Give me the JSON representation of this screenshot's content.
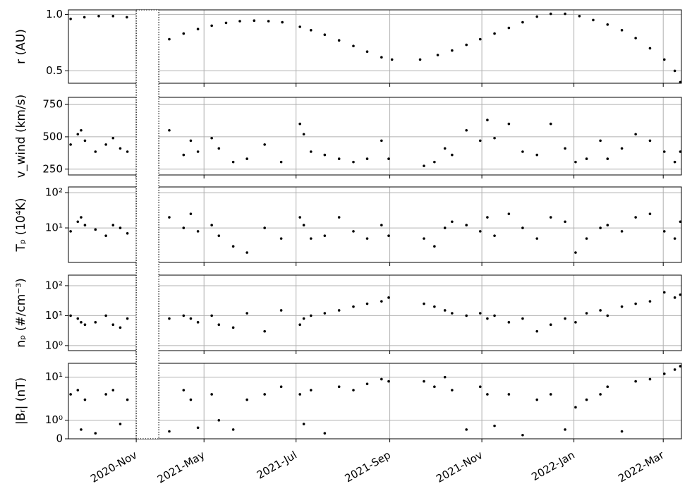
{
  "chart_data": [
    {
      "type": "scatter",
      "ylabel": "r (AU)",
      "yscale": "linear",
      "grid": true,
      "color": "#000000",
      "xlim": [
        2020.71,
        2022.195
      ],
      "xbreak": [
        2020.833,
        2021.247
      ],
      "xticks": [
        {
          "value": 2020.833,
          "label": "2020-Nov"
        },
        {
          "value": 2021.329,
          "label": "2021-May"
        },
        {
          "value": 2021.496,
          "label": "2021-Jul"
        },
        {
          "value": 2021.666,
          "label": "2021-Sep"
        },
        {
          "value": 2021.833,
          "label": "2021-Nov"
        },
        {
          "value": 2022.0,
          "label": "2022-Jan"
        },
        {
          "value": 2022.162,
          "label": "2022-Mar"
        }
      ],
      "ylim": [
        0.39,
        1.04
      ],
      "yticks": [
        0.5,
        {
          "value": 1,
          "label": "1.0"
        }
      ],
      "x": [
        2020.714,
        2020.739,
        2020.765,
        2020.791,
        2020.816,
        2021.266,
        2021.292,
        2021.318,
        2021.343,
        2021.369,
        2021.394,
        2021.42,
        2021.446,
        2021.471,
        2021.503,
        2021.523,
        2021.548,
        2021.574,
        2021.6,
        2021.625,
        2021.651,
        2021.67,
        2021.721,
        2021.753,
        2021.779,
        2021.805,
        2021.83,
        2021.856,
        2021.882,
        2021.907,
        2021.933,
        2021.958,
        2021.984,
        2022.01,
        2022.035,
        2022.061,
        2022.087,
        2022.112,
        2022.138,
        2022.164,
        2022.183,
        2022.193
      ],
      "values": [
        0.96,
        0.975,
        0.985,
        0.985,
        0.975,
        0.78,
        0.83,
        0.87,
        0.9,
        0.925,
        0.94,
        0.945,
        0.94,
        0.93,
        0.89,
        0.86,
        0.82,
        0.77,
        0.72,
        0.67,
        0.62,
        0.6,
        0.6,
        0.64,
        0.68,
        0.73,
        0.78,
        0.83,
        0.88,
        0.93,
        0.98,
        1.005,
        1.005,
        0.985,
        0.95,
        0.91,
        0.86,
        0.79,
        0.7,
        0.6,
        0.5,
        0.4
      ]
    },
    {
      "type": "scatter",
      "ylabel": "v_wind (km/s)",
      "yscale": "linear",
      "grid": true,
      "color": "#000000",
      "xlim": [
        2020.71,
        2022.195
      ],
      "xbreak": [
        2020.833,
        2021.247
      ],
      "xticks": [
        {
          "value": 2020.833,
          "label": "2020-Nov"
        },
        {
          "value": 2021.329,
          "label": "2021-May"
        },
        {
          "value": 2021.496,
          "label": "2021-Jul"
        },
        {
          "value": 2021.666,
          "label": "2021-Sep"
        },
        {
          "value": 2021.833,
          "label": "2021-Nov"
        },
        {
          "value": 2022.0,
          "label": "2022-Jan"
        },
        {
          "value": 2022.162,
          "label": "2022-Mar"
        }
      ],
      "ylim": [
        205,
        805
      ],
      "yticks": [
        250,
        500,
        750
      ],
      "x": [
        2020.714,
        2020.727,
        2020.733,
        2020.74,
        2020.759,
        2020.778,
        2020.791,
        2020.804,
        2020.817,
        2021.266,
        2021.292,
        2021.305,
        2021.318,
        2021.343,
        2021.356,
        2021.382,
        2021.407,
        2021.439,
        2021.469,
        2021.503,
        2021.51,
        2021.523,
        2021.548,
        2021.574,
        2021.6,
        2021.625,
        2021.651,
        2021.664,
        2021.728,
        2021.747,
        2021.766,
        2021.779,
        2021.805,
        2021.83,
        2021.843,
        2021.856,
        2021.882,
        2021.907,
        2021.933,
        2021.958,
        2021.984,
        2022.003,
        2022.023,
        2022.048,
        2022.061,
        2022.087,
        2022.112,
        2022.138,
        2022.164,
        2022.183,
        2022.193
      ],
      "values": [
        440,
        520,
        550,
        470,
        385,
        440,
        490,
        410,
        385,
        550,
        360,
        470,
        385,
        490,
        410,
        305,
        330,
        440,
        305,
        600,
        520,
        385,
        360,
        330,
        305,
        330,
        470,
        330,
        275,
        305,
        410,
        360,
        550,
        470,
        630,
        490,
        600,
        385,
        360,
        600,
        410,
        305,
        330,
        470,
        330,
        410,
        520,
        470,
        385,
        305,
        385
      ]
    },
    {
      "type": "scatter",
      "ylabel": "Tₚ (10⁴K)",
      "yscale": "log",
      "grid": true,
      "color": "#000000",
      "xlim": [
        2020.71,
        2022.195
      ],
      "xbreak": [
        2020.833,
        2021.247
      ],
      "xticks": [
        {
          "value": 2020.833,
          "label": "2020-Nov"
        },
        {
          "value": 2021.329,
          "label": "2021-May"
        },
        {
          "value": 2021.496,
          "label": "2021-Jul"
        },
        {
          "value": 2021.666,
          "label": "2021-Sep"
        },
        {
          "value": 2021.833,
          "label": "2021-Nov"
        },
        {
          "value": 2022.0,
          "label": "2022-Jan"
        },
        {
          "value": 2022.162,
          "label": "2022-Mar"
        }
      ],
      "ylim": [
        1.05,
        145
      ],
      "yticks": [
        {
          "value": 10,
          "label": "10¹"
        },
        {
          "value": 100,
          "label": "10²"
        }
      ],
      "x": [
        2020.714,
        2020.727,
        2020.733,
        2020.74,
        2020.759,
        2020.778,
        2020.791,
        2020.804,
        2020.817,
        2021.266,
        2021.292,
        2021.305,
        2021.318,
        2021.343,
        2021.356,
        2021.382,
        2021.407,
        2021.439,
        2021.469,
        2021.503,
        2021.51,
        2021.523,
        2021.548,
        2021.574,
        2021.6,
        2021.625,
        2021.651,
        2021.664,
        2021.728,
        2021.747,
        2021.766,
        2021.779,
        2021.805,
        2021.83,
        2021.843,
        2021.856,
        2021.882,
        2021.907,
        2021.933,
        2021.958,
        2021.984,
        2022.003,
        2022.023,
        2022.048,
        2022.061,
        2022.087,
        2022.112,
        2022.138,
        2022.164,
        2022.183,
        2022.193
      ],
      "values": [
        8,
        15,
        20,
        12,
        9,
        6,
        12,
        10,
        7,
        20,
        10,
        25,
        8,
        12,
        6,
        3,
        2,
        10,
        5,
        20,
        12,
        5,
        6,
        20,
        8,
        5,
        12,
        6,
        5,
        3,
        10,
        15,
        12,
        8,
        20,
        6,
        25,
        10,
        5,
        20,
        15,
        2,
        5,
        10,
        12,
        8,
        20,
        25,
        8,
        5,
        15
      ]
    },
    {
      "type": "scatter",
      "ylabel": "nₚ (#/cm⁻³)",
      "yscale": "log",
      "grid": true,
      "color": "#000000",
      "xlim": [
        2020.71,
        2022.195
      ],
      "xbreak": [
        2020.833,
        2021.247
      ],
      "xticks": [
        {
          "value": 2020.833,
          "label": "2020-Nov"
        },
        {
          "value": 2021.329,
          "label": "2021-May"
        },
        {
          "value": 2021.496,
          "label": "2021-Jul"
        },
        {
          "value": 2021.666,
          "label": "2021-Sep"
        },
        {
          "value": 2021.833,
          "label": "2021-Nov"
        },
        {
          "value": 2022.0,
          "label": "2022-Jan"
        },
        {
          "value": 2022.162,
          "label": "2022-Mar"
        }
      ],
      "ylim": [
        0.68,
        225
      ],
      "yticks": [
        {
          "value": 1,
          "label": "10⁰"
        },
        {
          "value": 10,
          "label": "10¹"
        },
        {
          "value": 100,
          "label": "10²"
        }
      ],
      "x": [
        2020.714,
        2020.727,
        2020.733,
        2020.74,
        2020.759,
        2020.778,
        2020.791,
        2020.804,
        2020.817,
        2021.266,
        2021.292,
        2021.305,
        2021.318,
        2021.343,
        2021.356,
        2021.382,
        2021.407,
        2021.439,
        2021.469,
        2021.503,
        2021.51,
        2021.523,
        2021.548,
        2021.574,
        2021.6,
        2021.625,
        2021.651,
        2021.664,
        2021.728,
        2021.747,
        2021.766,
        2021.779,
        2021.805,
        2021.83,
        2021.843,
        2021.856,
        2021.882,
        2021.907,
        2021.933,
        2021.958,
        2021.984,
        2022.003,
        2022.023,
        2022.048,
        2022.061,
        2022.087,
        2022.112,
        2022.138,
        2022.164,
        2022.183,
        2022.193
      ],
      "values": [
        10,
        8,
        6,
        5,
        6,
        10,
        5,
        4,
        8,
        8,
        10,
        8,
        6,
        10,
        5,
        4,
        12,
        3,
        15,
        5,
        8,
        10,
        12,
        15,
        20,
        25,
        30,
        40,
        25,
        20,
        15,
        12,
        10,
        12,
        8,
        10,
        6,
        8,
        3,
        5,
        8,
        6,
        12,
        15,
        10,
        20,
        25,
        30,
        60,
        40,
        50
      ]
    },
    {
      "type": "scatter",
      "ylabel": "|Bᵣ| (nT)",
      "yscale": "symlog",
      "linthresh": 1,
      "linscale": 0.43,
      "grid": true,
      "color": "#000000",
      "xlim": [
        2020.71,
        2022.195
      ],
      "xbreak": [
        2020.833,
        2021.247
      ],
      "xticks": [
        {
          "value": 2020.833,
          "label": "2020-Nov"
        },
        {
          "value": 2021.329,
          "label": "2021-May"
        },
        {
          "value": 2021.496,
          "label": "2021-Jul"
        },
        {
          "value": 2021.666,
          "label": "2021-Sep"
        },
        {
          "value": 2021.833,
          "label": "2021-Nov"
        },
        {
          "value": 2022.0,
          "label": "2022-Jan"
        },
        {
          "value": 2022.162,
          "label": "2022-Mar"
        }
      ],
      "ylim": [
        0,
        21
      ],
      "yticks": [
        0,
        {
          "value": 1,
          "label": "10⁰"
        },
        {
          "value": 10,
          "label": "10¹"
        }
      ],
      "x": [
        2020.714,
        2020.727,
        2020.733,
        2020.74,
        2020.759,
        2020.778,
        2020.791,
        2020.804,
        2020.817,
        2021.266,
        2021.292,
        2021.305,
        2021.318,
        2021.343,
        2021.356,
        2021.382,
        2021.407,
        2021.439,
        2021.469,
        2021.503,
        2021.51,
        2021.523,
        2021.548,
        2021.574,
        2021.6,
        2021.625,
        2021.651,
        2021.664,
        2021.728,
        2021.747,
        2021.766,
        2021.779,
        2021.805,
        2021.83,
        2021.843,
        2021.856,
        2021.882,
        2021.907,
        2021.933,
        2021.958,
        2021.984,
        2022.003,
        2022.023,
        2022.048,
        2022.061,
        2022.087,
        2022.112,
        2022.138,
        2022.164,
        2022.183,
        2022.193
      ],
      "values": [
        4,
        5,
        0.5,
        3,
        0.3,
        4,
        5,
        0.8,
        3,
        0.4,
        5,
        3,
        0.6,
        4,
        1,
        0.5,
        3,
        4,
        6,
        4,
        0.8,
        5,
        0.3,
        6,
        5,
        7,
        9,
        8,
        8,
        6,
        10,
        5,
        0.5,
        6,
        4,
        0.7,
        4,
        0.2,
        3,
        4,
        0.5,
        2,
        3,
        4,
        6,
        0.4,
        8,
        9,
        12,
        15,
        18
      ]
    }
  ]
}
